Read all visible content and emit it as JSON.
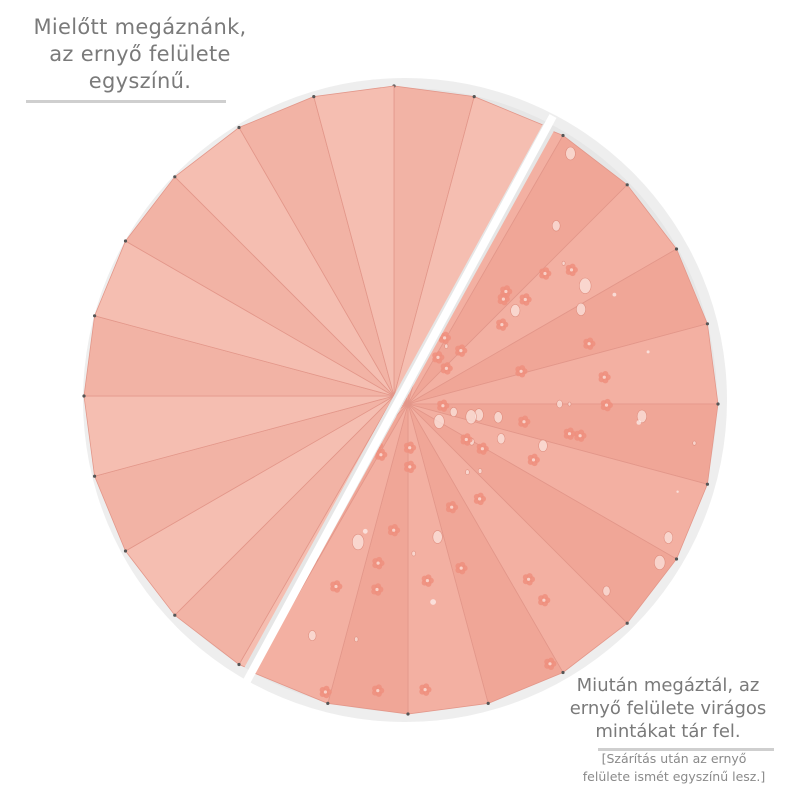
{
  "captions": {
    "before": [
      "Mielőtt megáznánk,",
      "az ernyő felülete",
      "egyszínű."
    ],
    "after": [
      "Miután megáztál, az",
      "ernyő felülete virágos",
      "mintákat tár fel."
    ],
    "note": [
      "[Szárítás után az ernyő",
      "felülete ismét egyszínű lesz.]"
    ]
  },
  "colors": {
    "background": "#ffffff",
    "rim": "#ececec",
    "canopy_dry": "#f3b5a8",
    "canopy_wet": "#f2aa9b",
    "flower": "#f08e7d",
    "caption_text": "#7a7a7a"
  },
  "icons": [
    "umbrella-canopy",
    "flower-pattern",
    "water-droplet"
  ]
}
